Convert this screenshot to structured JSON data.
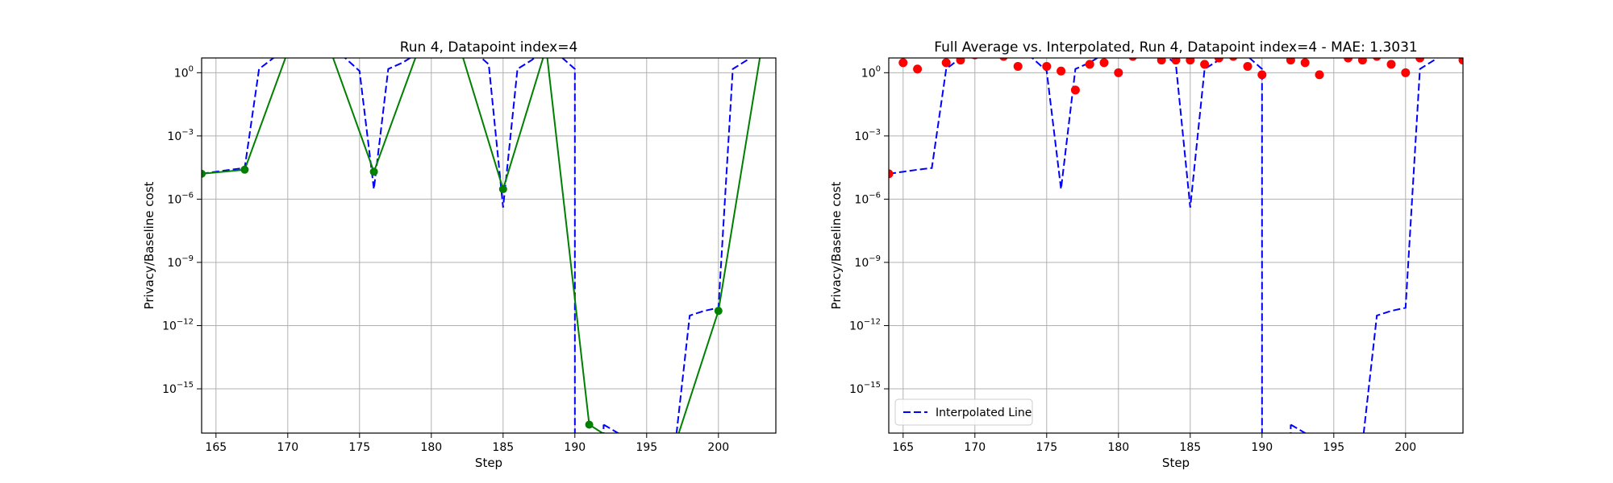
{
  "chart_data": [
    {
      "type": "line",
      "title": "Run 4, Datapoint index=4",
      "xlabel": "Step",
      "ylabel": "Privacy/Baseline cost",
      "xlim": [
        164,
        204
      ],
      "ylim_log10": [
        -17.1,
        0.7
      ],
      "yscale": "log",
      "grid": true,
      "xticks": [
        165,
        170,
        175,
        180,
        185,
        190,
        195,
        200
      ],
      "xtick_labels": [
        "165",
        "170",
        "175",
        "180",
        "185",
        "190",
        "195",
        "200"
      ],
      "yticks_log10": [
        0,
        -3,
        -6,
        -9,
        -12,
        -15
      ],
      "ytick_labels": [
        {
          "base": "10",
          "exp": "0"
        },
        {
          "base": "10",
          "exp": "−3"
        },
        {
          "base": "10",
          "exp": "−6"
        },
        {
          "base": "10",
          "exp": "−9"
        },
        {
          "base": "10",
          "exp": "−12"
        },
        {
          "base": "10",
          "exp": "−15"
        }
      ],
      "series": [
        {
          "style": "dashed-line",
          "color": "#0000ff",
          "x": [
            164,
            165,
            166,
            167,
            168,
            169,
            170,
            171,
            172,
            173,
            174,
            175,
            176,
            177,
            178,
            179,
            180,
            181,
            182,
            183,
            184,
            185,
            186,
            187,
            188,
            189,
            190,
            191,
            192,
            193,
            194,
            195,
            196,
            197,
            198,
            199,
            200,
            201,
            202,
            203
          ],
          "y": [
            1.6e-05,
            2e-05,
            2.5e-05,
            3e-05,
            1.5,
            5,
            10,
            10,
            10,
            10,
            5,
            1.2,
            3e-06,
            1.5,
            3,
            8,
            10,
            12,
            12,
            10,
            2.5,
            4e-07,
            1.5,
            4,
            15,
            6,
            1.5,
            null,
            2e-17,
            8e-18,
            1e-18,
            1.5e-18,
            2e-18,
            2.5e-18,
            3e-12,
            5e-12,
            7e-12,
            1.5,
            4,
            15
          ]
        },
        {
          "style": "solid-line-with-markers",
          "color": "#008000",
          "x": [
            164,
            167,
            170,
            173,
            176,
            179,
            182,
            185,
            188,
            191,
            194,
            197,
            200,
            203
          ],
          "y": [
            1.6e-05,
            2.5e-05,
            10,
            10,
            2e-05,
            8,
            15,
            3e-06,
            15,
            2e-17,
            1e-18,
            2.5e-18,
            5e-12,
            15
          ]
        }
      ]
    },
    {
      "type": "scatter",
      "title": "Full Average vs. Interpolated, Run 4, Datapoint index=4 - MAE: 1.3031",
      "xlabel": "Step",
      "ylabel": "Privacy/Baseline cost",
      "xlim": [
        164,
        204
      ],
      "ylim_log10": [
        -17.1,
        0.7
      ],
      "yscale": "log",
      "grid": true,
      "legend": "lower left",
      "xticks": [
        165,
        170,
        175,
        180,
        185,
        190,
        195,
        200
      ],
      "xtick_labels": [
        "165",
        "170",
        "175",
        "180",
        "185",
        "190",
        "195",
        "200"
      ],
      "yticks_log10": [
        0,
        -3,
        -6,
        -9,
        -12,
        -15
      ],
      "ytick_labels": [
        {
          "base": "10",
          "exp": "0"
        },
        {
          "base": "10",
          "exp": "−3"
        },
        {
          "base": "10",
          "exp": "−6"
        },
        {
          "base": "10",
          "exp": "−9"
        },
        {
          "base": "10",
          "exp": "−12"
        },
        {
          "base": "10",
          "exp": "−15"
        }
      ],
      "series": [
        {
          "name": "Interpolated Line",
          "style": "dashed-line",
          "color": "#0000ff",
          "x": [
            164,
            165,
            166,
            167,
            168,
            169,
            170,
            171,
            172,
            173,
            174,
            175,
            176,
            177,
            178,
            179,
            180,
            181,
            182,
            183,
            184,
            185,
            186,
            187,
            188,
            189,
            190,
            191,
            192,
            193,
            194,
            195,
            196,
            197,
            198,
            199,
            200,
            201,
            202,
            203,
            204
          ],
          "y": [
            1.6e-05,
            2e-05,
            2.5e-05,
            3e-05,
            1.5,
            5,
            10,
            10,
            10,
            10,
            5,
            1.2,
            3e-06,
            1.5,
            3,
            8,
            10,
            12,
            12,
            10,
            2.5,
            4e-07,
            1.5,
            4,
            15,
            6,
            1.5,
            null,
            2e-17,
            8e-18,
            1e-18,
            1.5e-18,
            2e-18,
            2.5e-18,
            3e-12,
            5e-12,
            7e-12,
            1.5,
            4,
            15,
            15
          ]
        },
        {
          "style": "scatter",
          "color": "#ff0000",
          "x": [
            164,
            165,
            166,
            167,
            168,
            169,
            170,
            171,
            172,
            173,
            174,
            175,
            176,
            177,
            178,
            179,
            180,
            181,
            182,
            183,
            184,
            185,
            186,
            187,
            188,
            189,
            190,
            191,
            192,
            193,
            194,
            195,
            196,
            197,
            198,
            199,
            200,
            201,
            202,
            203,
            204
          ],
          "y": [
            1.6e-05,
            3,
            1.5,
            10,
            3,
            4,
            7,
            8,
            6,
            2,
            10,
            2,
            1.2,
            0.15,
            2.5,
            3,
            1,
            6,
            8,
            4,
            4,
            4,
            2.5,
            5,
            6,
            2,
            0.8,
            8,
            4,
            3,
            0.8,
            8,
            5,
            4,
            6,
            2.5,
            1,
            5,
            8,
            10,
            4
          ]
        }
      ]
    }
  ]
}
